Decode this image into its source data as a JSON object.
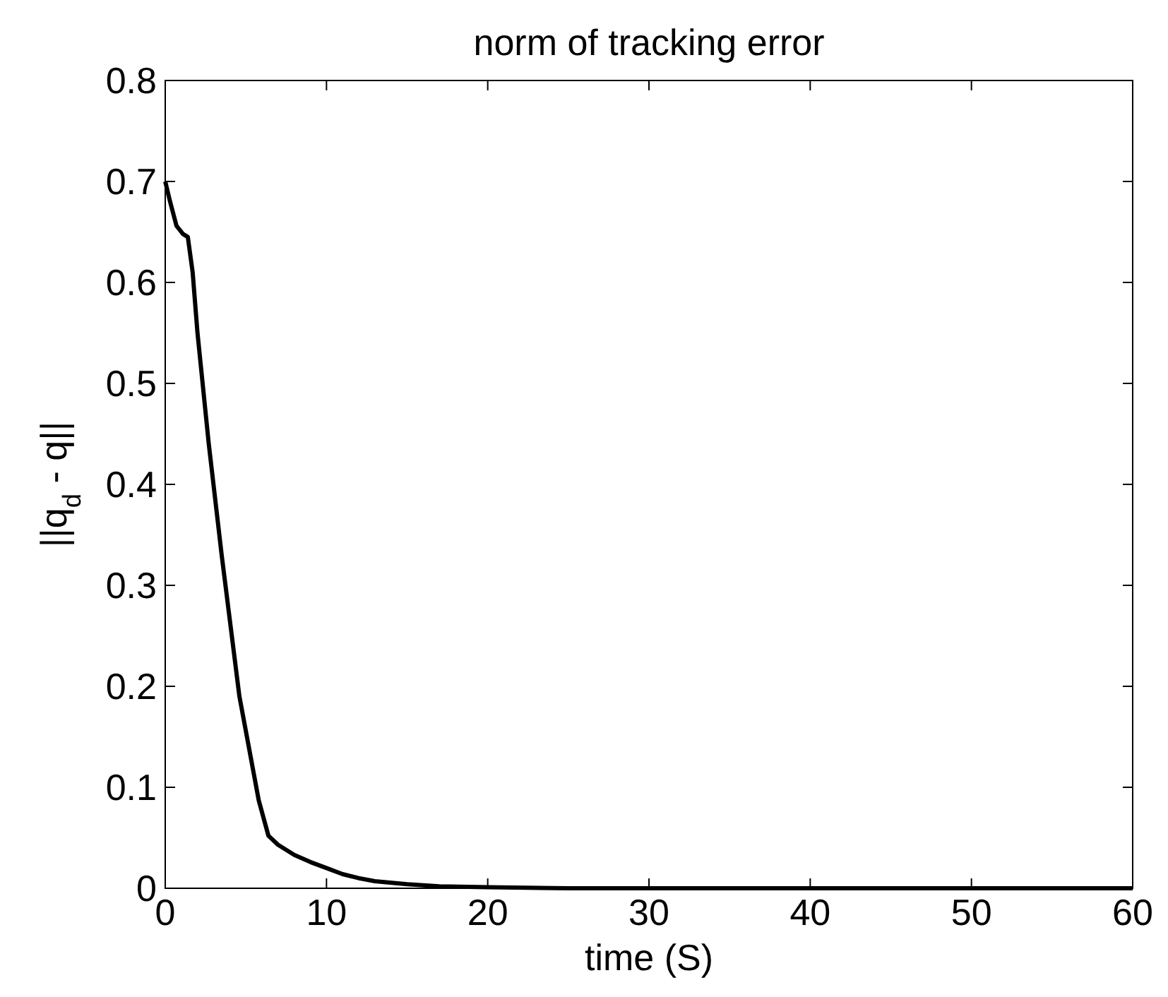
{
  "chart_data": {
    "type": "line",
    "title": "norm of tracking error",
    "xlabel": "time (S)",
    "ylabel": "||q$_{d}$ - q||",
    "x": [
      0,
      0.3,
      0.7,
      1.1,
      1.4,
      1.7,
      2.0,
      2.7,
      3.5,
      4.6,
      5.8,
      6.4,
      7.0,
      8.0,
      9.0,
      10,
      11,
      12,
      13,
      15,
      17,
      20,
      25,
      30,
      40,
      50,
      60
    ],
    "series": [
      {
        "color": "#000000",
        "values": [
          0.7,
          0.68,
          0.656,
          0.648,
          0.645,
          0.61,
          0.55,
          0.44,
          0.33,
          0.19,
          0.087,
          0.052,
          0.043,
          0.033,
          0.026,
          0.02,
          0.014,
          0.01,
          0.007,
          0.004,
          0.002,
          0.001,
          0,
          0,
          0,
          0,
          0
        ]
      }
    ],
    "xlim": [
      0,
      60
    ],
    "xticks": [
      0,
      10,
      20,
      30,
      40,
      50,
      60
    ],
    "ylim": [
      0,
      0.8
    ],
    "yticks": [
      0,
      0.1,
      0.2,
      0.3,
      0.4,
      0.5,
      0.6,
      0.7,
      0.8
    ],
    "grid": false,
    "marker": "none",
    "line_style": "solid"
  }
}
